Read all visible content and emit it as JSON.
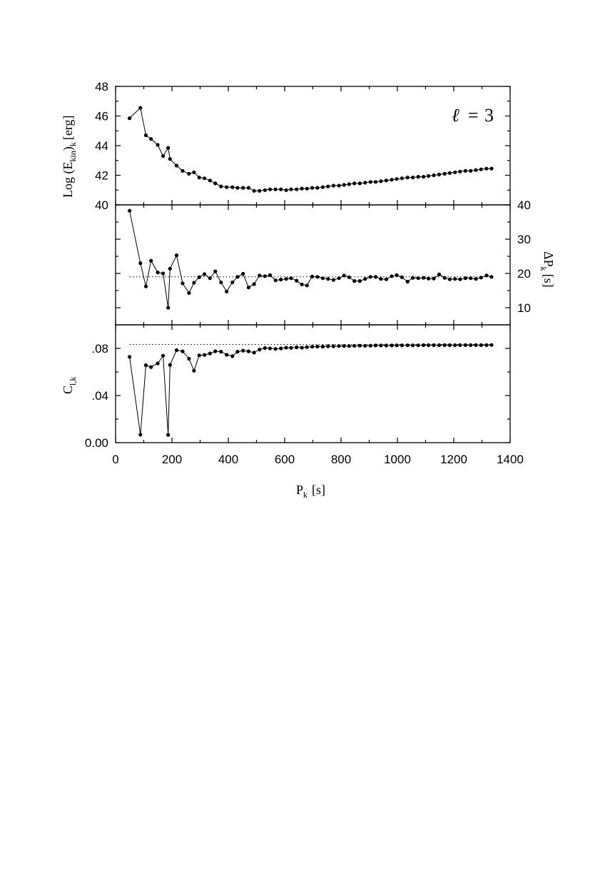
{
  "chart_data": {
    "type": "line",
    "x": [
      49.7,
      88.0,
      107.6,
      125.9,
      149.5,
      168.6,
      186.6,
      193.1,
      216.4,
      238.0,
      260.5,
      278.2,
      296.7,
      315.5,
      334.9,
      353.9,
      374.2,
      394.2,
      414.7,
      432.6,
      452.3,
      471.8,
      491.5,
      510.7,
      530.0,
      548.0,
      567.5,
      586.6,
      605.4,
      622.9,
      642.2,
      661.1,
      678.9,
      697.6,
      716.3,
      735.1,
      754.0,
      773.2,
      792.6,
      810.7,
      828.6,
      847.3,
      866.6,
      885.5,
      904.5,
      922.8,
      941.6,
      960.6,
      979.9,
      997.8,
      1016.3,
      1036.0,
      1054.8,
      1073.8,
      1092.6,
      1110.4,
      1129.2,
      1148.0,
      1167.6,
      1185.8,
      1204.3,
      1222.6,
      1241.6,
      1260.0,
      1278.5,
      1296.8,
      1316.1,
      1334.2
    ],
    "x_label": "P",
    "x_label_sub": "k",
    "x_label_unit": "[s]",
    "x_range": [
      0,
      1400
    ],
    "x_ticks": [
      "0",
      "200",
      "400",
      "600",
      "800",
      "1000",
      "1200",
      "1400"
    ],
    "annotation": {
      "ell": "ℓ",
      "eq": "=",
      "value": "3"
    },
    "panels": [
      {
        "id": "ekin",
        "y_label_prefix": "Log (E",
        "y_label_sub": "kin",
        "y_label_mid": ")",
        "y_label_sub2": "k",
        "y_label_unit": "[erg]",
        "y_range": [
          40,
          48
        ],
        "y_ticks": [
          "40",
          "42",
          "44",
          "46",
          "48"
        ],
        "values": [
          45.85,
          46.55,
          44.7,
          44.45,
          44.05,
          43.3,
          43.85,
          43.1,
          42.65,
          42.3,
          42.1,
          42.2,
          41.85,
          41.8,
          41.65,
          41.45,
          41.25,
          41.2,
          41.2,
          41.15,
          41.15,
          41.15,
          40.95,
          40.95,
          41.0,
          41.05,
          41.05,
          41.05,
          41.0,
          41.05,
          41.05,
          41.1,
          41.1,
          41.15,
          41.15,
          41.2,
          41.25,
          41.3,
          41.3,
          41.35,
          41.4,
          41.45,
          41.45,
          41.5,
          41.55,
          41.55,
          41.6,
          41.65,
          41.7,
          41.75,
          41.8,
          41.85,
          41.85,
          41.9,
          41.9,
          41.95,
          42.0,
          42.05,
          42.1,
          42.15,
          42.2,
          42.25,
          42.3,
          42.3,
          42.35,
          42.4,
          42.45,
          42.45
        ]
      },
      {
        "id": "deltaP",
        "y_label_prefix": "ΔP",
        "y_label_sub": "k",
        "y_label_unit": "[s]",
        "y_axis_side": "right",
        "y_range": [
          5,
          40
        ],
        "y_ticks": [
          "10",
          "20",
          "30",
          "40"
        ],
        "reference_value": 19.0,
        "values": [
          38.3,
          23.0,
          16.2,
          23.7,
          20.3,
          20.0,
          10.0,
          21.4,
          25.3,
          17.1,
          14.3,
          17.3,
          18.9,
          19.8,
          18.6,
          20.6,
          17.4,
          14.7,
          17.4,
          19.0,
          19.9,
          15.9,
          16.9,
          19.4,
          19.2,
          19.5,
          18.0,
          18.2,
          18.4,
          18.6,
          17.9,
          16.8,
          16.5,
          19.1,
          19.0,
          18.6,
          18.4,
          18.1,
          18.6,
          19.4,
          18.9,
          17.8,
          17.8,
          18.4,
          19.0,
          19.0,
          18.4,
          18.3,
          19.2,
          19.5,
          18.9,
          17.6,
          18.7,
          18.6,
          18.7,
          18.5,
          18.5,
          19.7,
          18.7,
          18.3,
          18.4,
          18.3,
          18.6,
          18.6,
          18.4,
          18.8,
          19.4,
          19.0
        ]
      },
      {
        "id": "ckl",
        "y_label_prefix": "C",
        "y_label_sub": "l,k",
        "y_range": [
          0,
          0.1
        ],
        "y_ticks": [
          "0.00",
          ".04",
          ".08"
        ],
        "reference_value": 0.0833,
        "values": [
          0.0728,
          0.0067,
          0.0657,
          0.0642,
          0.0673,
          0.0738,
          0.0066,
          0.066,
          0.0785,
          0.0775,
          0.0713,
          0.0611,
          0.0741,
          0.0745,
          0.0757,
          0.0776,
          0.0772,
          0.0746,
          0.0734,
          0.0772,
          0.0781,
          0.0775,
          0.0764,
          0.079,
          0.0803,
          0.08,
          0.0796,
          0.08,
          0.0806,
          0.0805,
          0.0809,
          0.0806,
          0.0811,
          0.0814,
          0.0815,
          0.0815,
          0.0818,
          0.0818,
          0.082,
          0.082,
          0.082,
          0.0822,
          0.0823,
          0.0822,
          0.0823,
          0.0825,
          0.0825,
          0.0825,
          0.0825,
          0.0826,
          0.0826,
          0.0826,
          0.0826,
          0.0826,
          0.0827,
          0.0827,
          0.0827,
          0.0827,
          0.0828,
          0.0827,
          0.0827,
          0.0828,
          0.0828,
          0.0828,
          0.0828,
          0.0828,
          0.0828,
          0.0829
        ]
      }
    ]
  }
}
